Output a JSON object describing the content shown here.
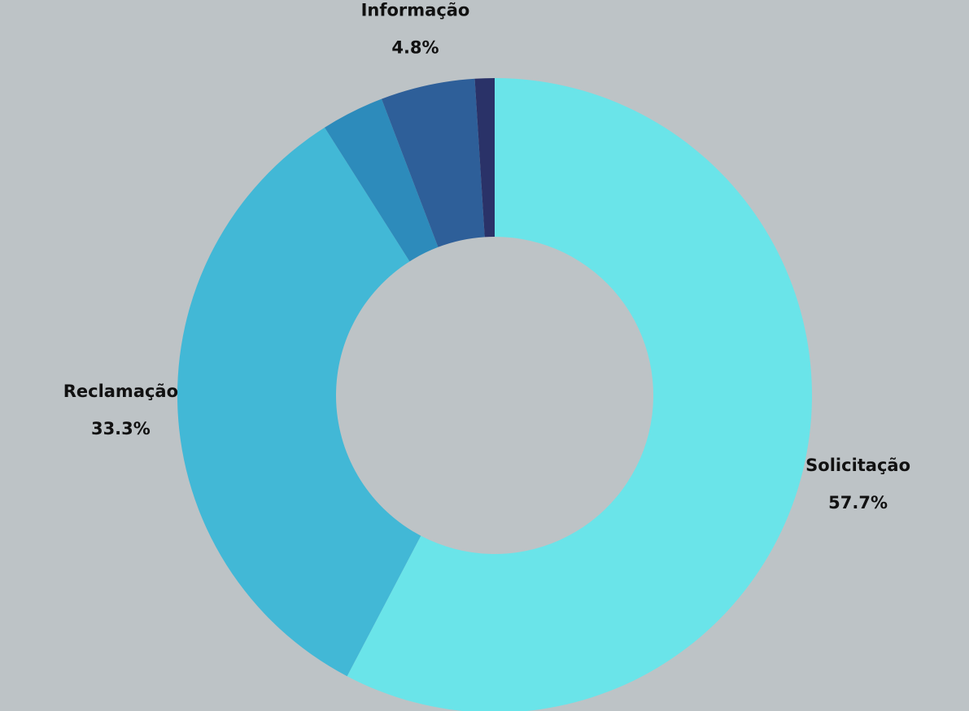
{
  "chart_data": {
    "type": "donut",
    "categories": [
      "Solicitação",
      "Reclamação",
      null,
      "Informação",
      null
    ],
    "values": [
      57.7,
      33.3,
      3.2,
      4.8,
      1.0
    ],
    "value_labels": [
      "57.7%",
      "33.3%",
      null,
      "4.8%",
      null
    ],
    "colors": [
      "#6ae4e9",
      "#42b8d6",
      "#2d8bbb",
      "#2e5f99",
      "#2a3268"
    ]
  }
}
